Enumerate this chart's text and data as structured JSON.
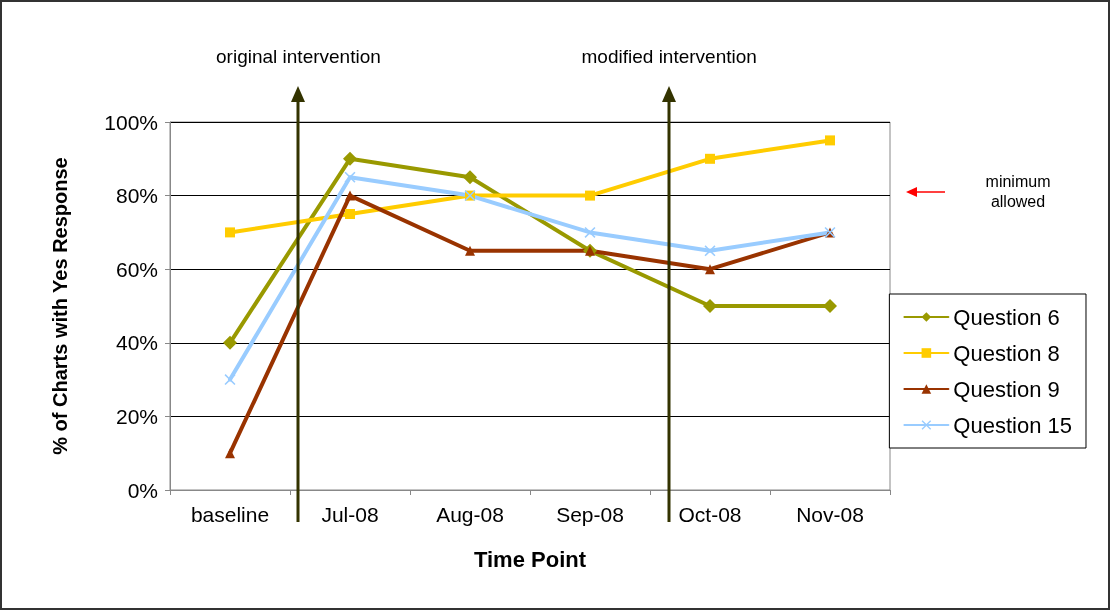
{
  "chart_data": {
    "type": "line",
    "xlabel": "Time Point",
    "ylabel": "% of Charts with Yes Response",
    "categories": [
      "baseline",
      "Jul-08",
      "Aug-08",
      "Sep-08",
      "Oct-08",
      "Nov-08"
    ],
    "series": [
      {
        "name": "Question 6",
        "color": "#999900",
        "marker": "diamond",
        "values": [
          40,
          90,
          85,
          65,
          50,
          50
        ]
      },
      {
        "name": "Question 8",
        "color": "#ffcc00",
        "marker": "square",
        "values": [
          70,
          75,
          80,
          80,
          90,
          95
        ]
      },
      {
        "name": "Question 9",
        "color": "#993300",
        "marker": "triangle",
        "values": [
          10,
          80,
          65,
          65,
          60,
          70
        ]
      },
      {
        "name": "Question 15",
        "color": "#99ccff",
        "marker": "cross",
        "values": [
          30,
          85,
          80,
          70,
          65,
          70
        ]
      }
    ],
    "ylim": [
      0,
      100
    ],
    "yticks": [
      {
        "value": 0,
        "label": "0%"
      },
      {
        "value": 20,
        "label": "20%"
      },
      {
        "value": 40,
        "label": "40%"
      },
      {
        "value": 60,
        "label": "60%"
      },
      {
        "value": 80,
        "label": "80%"
      },
      {
        "value": 100,
        "label": "100%"
      }
    ],
    "grid": "y",
    "legend": "right",
    "line_style": "solid",
    "annotations": [
      "original intervention",
      "modified intervention",
      "minimum allowed"
    ]
  }
}
